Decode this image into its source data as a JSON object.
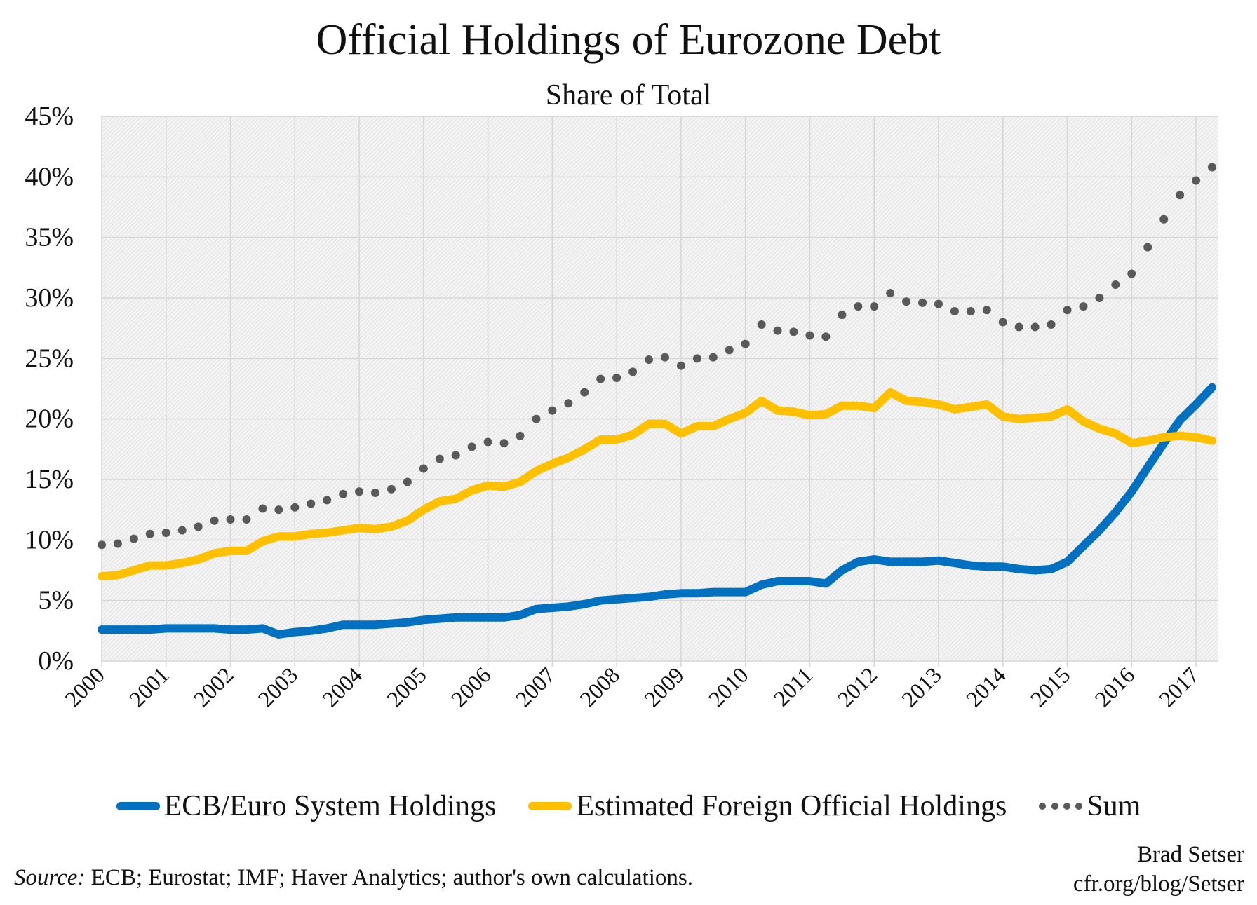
{
  "chart_data": {
    "type": "line",
    "title": "Official Holdings of Eurozone Debt",
    "subtitle": "Share of Total",
    "xlabel": "",
    "ylabel": "",
    "ylim": [
      0,
      45
    ],
    "y_ticks": [
      "0%",
      "5%",
      "10%",
      "15%",
      "20%",
      "25%",
      "30%",
      "35%",
      "40%",
      "45%"
    ],
    "x_ticks": [
      "2000",
      "2001",
      "2002",
      "2003",
      "2004",
      "2005",
      "2006",
      "2007",
      "2008",
      "2009",
      "2010",
      "2011",
      "2012",
      "2013",
      "2014",
      "2015",
      "2016",
      "2017"
    ],
    "x_frequency": "quarterly, 2000Q1–2017Q2",
    "grid": true,
    "legend_position": "bottom",
    "series": [
      {
        "name": "ECB/Euro System Holdings",
        "color": "#0070C0",
        "style": "solid",
        "values": [
          2.6,
          2.6,
          2.6,
          2.6,
          2.7,
          2.7,
          2.7,
          2.7,
          2.6,
          2.6,
          2.7,
          2.2,
          2.4,
          2.5,
          2.7,
          3.0,
          3.0,
          3.0,
          3.1,
          3.2,
          3.4,
          3.5,
          3.6,
          3.6,
          3.6,
          3.6,
          3.8,
          4.3,
          4.4,
          4.5,
          4.7,
          5.0,
          5.1,
          5.2,
          5.3,
          5.5,
          5.6,
          5.6,
          5.7,
          5.7,
          5.7,
          6.3,
          6.6,
          6.6,
          6.6,
          6.4,
          7.5,
          8.2,
          8.4,
          8.2,
          8.2,
          8.2,
          8.3,
          8.1,
          7.9,
          7.8,
          7.8,
          7.6,
          7.5,
          7.6,
          8.2,
          9.5,
          10.8,
          12.3,
          14.0,
          16.0,
          18.0,
          19.9,
          21.2,
          22.6
        ]
      },
      {
        "name": "Estimated Foreign Official Holdings",
        "color": "#FFC000",
        "style": "solid",
        "values": [
          7.0,
          7.1,
          7.5,
          7.9,
          7.9,
          8.1,
          8.4,
          8.9,
          9.1,
          9.1,
          9.9,
          10.3,
          10.3,
          10.5,
          10.6,
          10.8,
          11.0,
          10.9,
          11.1,
          11.6,
          12.5,
          13.2,
          13.4,
          14.1,
          14.5,
          14.4,
          14.8,
          15.7,
          16.3,
          16.8,
          17.5,
          18.3,
          18.3,
          18.7,
          19.6,
          19.6,
          18.8,
          19.4,
          19.4,
          20.0,
          20.5,
          21.5,
          20.7,
          20.6,
          20.3,
          20.4,
          21.1,
          21.1,
          20.9,
          22.2,
          21.5,
          21.4,
          21.2,
          20.8,
          21.0,
          21.2,
          20.2,
          20.0,
          20.1,
          20.2,
          20.8,
          19.8,
          19.2,
          18.8,
          18.0,
          18.2,
          18.5,
          18.6,
          18.5,
          18.2
        ]
      },
      {
        "name": "Sum",
        "color": "#595959",
        "style": "dotted",
        "values": [
          9.6,
          9.7,
          10.1,
          10.5,
          10.6,
          10.8,
          11.1,
          11.6,
          11.7,
          11.7,
          12.6,
          12.5,
          12.7,
          13.0,
          13.3,
          13.8,
          14.0,
          13.9,
          14.2,
          14.8,
          15.9,
          16.7,
          17.0,
          17.7,
          18.1,
          18.0,
          18.6,
          20.0,
          20.7,
          21.3,
          22.2,
          23.3,
          23.4,
          23.9,
          24.9,
          25.1,
          24.4,
          25.0,
          25.1,
          25.7,
          26.2,
          27.8,
          27.3,
          27.2,
          26.9,
          26.8,
          28.6,
          29.3,
          29.3,
          30.4,
          29.7,
          29.6,
          29.5,
          28.9,
          28.9,
          29.0,
          28.0,
          27.6,
          27.6,
          27.8,
          29.0,
          29.3,
          30.0,
          31.1,
          32.0,
          34.2,
          36.5,
          38.5,
          39.7,
          40.8
        ]
      }
    ]
  },
  "footer": {
    "source_label": "Source:",
    "source_text": " ECB; Eurostat; IMF; Haver Analytics; author's own calculations.",
    "author": "Brad Setser",
    "url": "cfr.org/blog/Setser"
  }
}
